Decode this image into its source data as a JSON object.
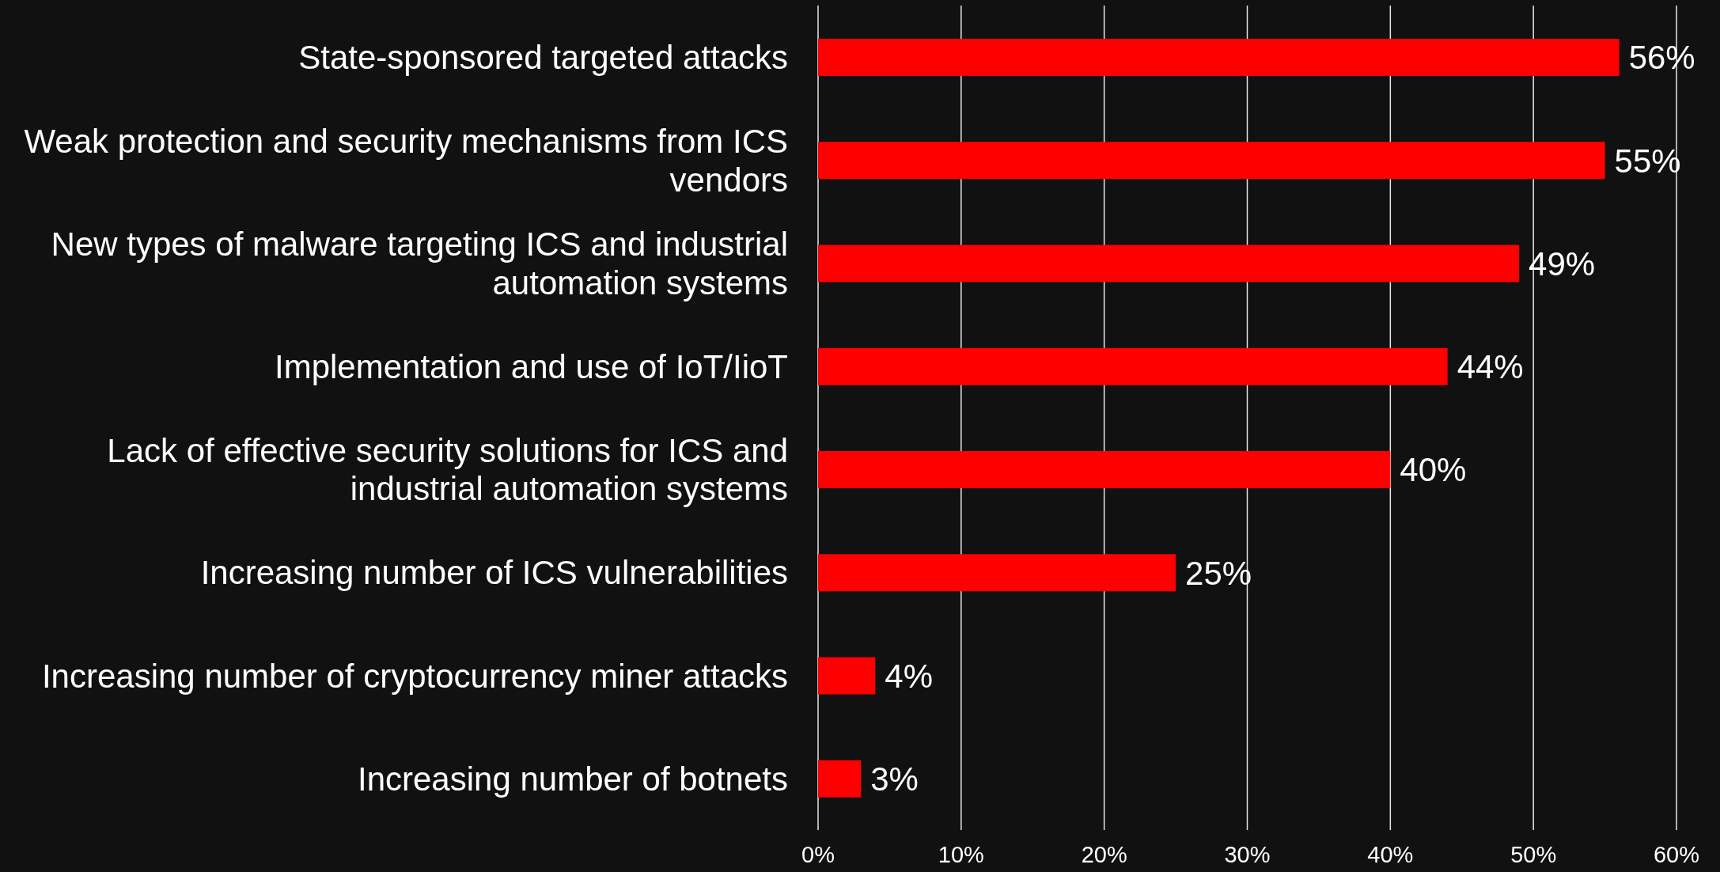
{
  "chart_data": {
    "type": "bar",
    "orientation": "horizontal",
    "categories": [
      "State-sponsored targeted attacks",
      "Weak protection and security mechanisms from ICS vendors",
      "New types of malware targeting ICS and industrial automation systems",
      "Implementation and use of IoT/IioT",
      "Lack of effective security solutions for ICS and industrial automation systems",
      "Increasing number of ICS vulnerabilities",
      "Increasing number of cryptocurrency miner attacks",
      "Increasing number of botnets"
    ],
    "values": [
      56,
      55,
      49,
      44,
      40,
      25,
      4,
      3
    ],
    "value_labels": [
      "56%",
      "55%",
      "49%",
      "44%",
      "40%",
      "25%",
      "4%",
      "3%"
    ],
    "color": "#ff0000",
    "xlim": [
      0,
      60
    ],
    "xticks": [
      {
        "value": 0,
        "label": "0%"
      },
      {
        "value": 10,
        "label": "10%"
      },
      {
        "value": 20,
        "label": "20%"
      },
      {
        "value": 30,
        "label": "30%"
      },
      {
        "value": 40,
        "label": "40%"
      },
      {
        "value": 50,
        "label": "50%"
      },
      {
        "value": 60,
        "label": "60%"
      }
    ],
    "grid": "x"
  }
}
